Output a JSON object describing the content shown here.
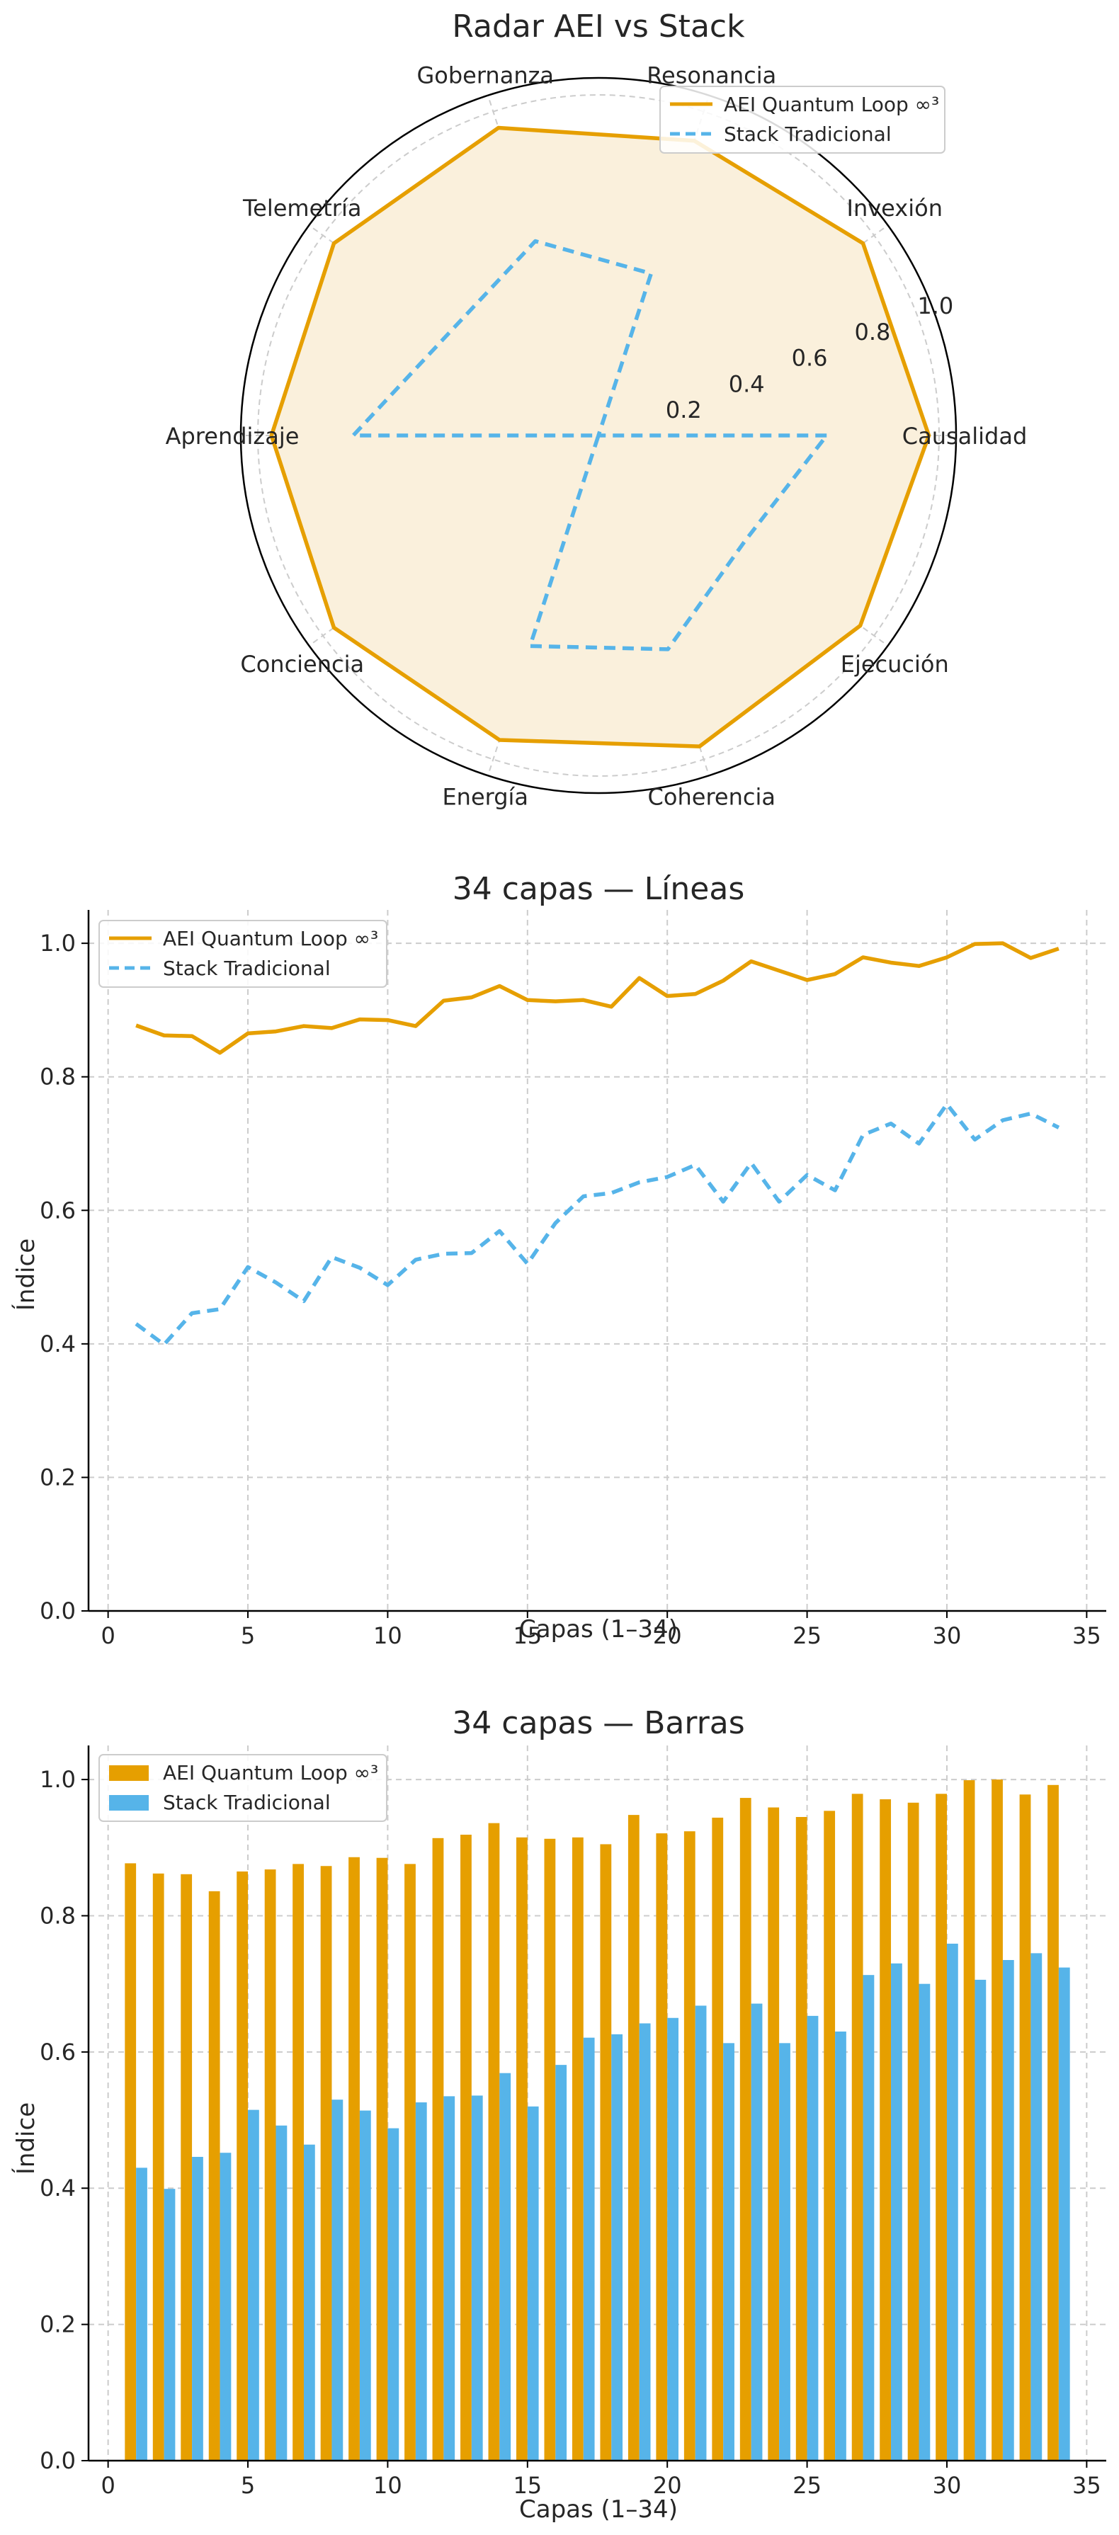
{
  "colors": {
    "aei": "#E69F00",
    "stack": "#56B4E9",
    "aei_fill": "#FAF0DC"
  },
  "chart_data": [
    {
      "type": "radar",
      "title": "Radar AEI vs Stack",
      "axes": [
        "Causalidad",
        "Invexión",
        "Resonancia",
        "Gobernanza",
        "Telemetría",
        "Aprendizaje",
        "Conciencia",
        "Energía",
        "Coherencia",
        "Ejecución"
      ],
      "rlim": [
        0,
        1.05
      ],
      "rticks": [
        "0.2",
        "0.4",
        "0.6",
        "0.8",
        "1.0"
      ],
      "legend": "top-right",
      "series": [
        {
          "name": "AEI Quantum Loop ∞³",
          "values": [
            0.97,
            0.96,
            0.91,
            0.95,
            0.96,
            0.96,
            0.96,
            0.94,
            0.96,
            0.95
          ],
          "style": "solid",
          "filled": true
        },
        {
          "name": "Stack Tradicional",
          "values": [
            0.67,
            0.0,
            0.5,
            0.6,
            0.53,
            0.72,
            0.0,
            0.65,
            0.66,
            0.53
          ],
          "style": "dashed",
          "filled": false
        }
      ]
    },
    {
      "type": "line",
      "title": "34 capas — Líneas",
      "xlabel": "Capas (1–34)",
      "ylabel": "Índice",
      "xlim": [
        -0.7,
        35.7
      ],
      "ylim": [
        0,
        1.05
      ],
      "xticks": [
        "0",
        "5",
        "10",
        "15",
        "20",
        "25",
        "30",
        "35"
      ],
      "yticks": [
        "0.0",
        "0.2",
        "0.4",
        "0.6",
        "0.8",
        "1.0"
      ],
      "grid": true,
      "legend": "top-left",
      "x": [
        1,
        2,
        3,
        4,
        5,
        6,
        7,
        8,
        9,
        10,
        11,
        12,
        13,
        14,
        15,
        16,
        17,
        18,
        19,
        20,
        21,
        22,
        23,
        24,
        25,
        26,
        27,
        28,
        29,
        30,
        31,
        32,
        33,
        34
      ],
      "series": [
        {
          "name": "AEI Quantum Loop ∞³",
          "style": "solid",
          "values": [
            0.877,
            0.862,
            0.861,
            0.836,
            0.865,
            0.868,
            0.876,
            0.873,
            0.886,
            0.885,
            0.876,
            0.914,
            0.919,
            0.936,
            0.915,
            0.913,
            0.915,
            0.905,
            0.948,
            0.921,
            0.924,
            0.944,
            0.973,
            0.959,
            0.945,
            0.954,
            0.979,
            0.971,
            0.966,
            0.979,
            0.999,
            1.0,
            0.978,
            0.992
          ]
        },
        {
          "name": "Stack Tradicional",
          "style": "dashed",
          "values": [
            0.43,
            0.399,
            0.446,
            0.452,
            0.515,
            0.492,
            0.464,
            0.53,
            0.514,
            0.488,
            0.526,
            0.535,
            0.536,
            0.569,
            0.52,
            0.581,
            0.621,
            0.626,
            0.642,
            0.65,
            0.668,
            0.613,
            0.671,
            0.613,
            0.653,
            0.63,
            0.713,
            0.73,
            0.7,
            0.759,
            0.706,
            0.735,
            0.745,
            0.724
          ]
        }
      ]
    },
    {
      "type": "bar",
      "title": "34 capas — Barras",
      "xlabel": "Capas (1–34)",
      "ylabel": "Índice",
      "xlim": [
        -0.7,
        35.7
      ],
      "ylim": [
        0,
        1.05
      ],
      "xticks": [
        "0",
        "5",
        "10",
        "15",
        "20",
        "25",
        "30",
        "35"
      ],
      "yticks": [
        "0.0",
        "0.2",
        "0.4",
        "0.6",
        "0.8",
        "1.0"
      ],
      "grid": true,
      "legend": "top-left",
      "x": [
        1,
        2,
        3,
        4,
        5,
        6,
        7,
        8,
        9,
        10,
        11,
        12,
        13,
        14,
        15,
        16,
        17,
        18,
        19,
        20,
        21,
        22,
        23,
        24,
        25,
        26,
        27,
        28,
        29,
        30,
        31,
        32,
        33,
        34
      ],
      "series": [
        {
          "name": "AEI Quantum Loop ∞³",
          "values": [
            0.877,
            0.862,
            0.861,
            0.836,
            0.865,
            0.868,
            0.876,
            0.873,
            0.886,
            0.885,
            0.876,
            0.914,
            0.919,
            0.936,
            0.915,
            0.913,
            0.915,
            0.905,
            0.948,
            0.921,
            0.924,
            0.944,
            0.973,
            0.959,
            0.945,
            0.954,
            0.979,
            0.971,
            0.966,
            0.979,
            0.999,
            1.0,
            0.978,
            0.992
          ]
        },
        {
          "name": "Stack Tradicional",
          "values": [
            0.43,
            0.399,
            0.446,
            0.452,
            0.515,
            0.492,
            0.464,
            0.53,
            0.514,
            0.488,
            0.526,
            0.535,
            0.536,
            0.569,
            0.52,
            0.581,
            0.621,
            0.626,
            0.642,
            0.65,
            0.668,
            0.613,
            0.671,
            0.613,
            0.653,
            0.63,
            0.713,
            0.73,
            0.7,
            0.759,
            0.706,
            0.735,
            0.745,
            0.724
          ]
        }
      ]
    }
  ]
}
